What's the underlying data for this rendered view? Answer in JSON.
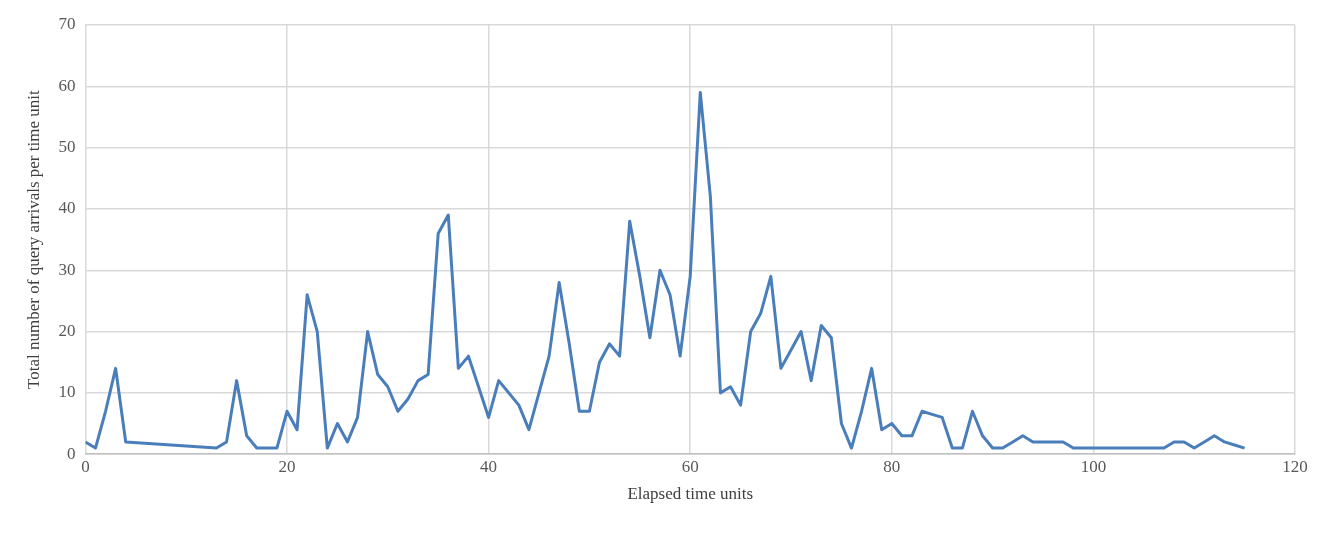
{
  "chart_data": {
    "type": "line",
    "xlabel": "Elapsed time units",
    "ylabel": "Total number of query arrivals per time unit",
    "xlim": [
      0,
      120
    ],
    "xticks": [
      0,
      20,
      40,
      60,
      80,
      100,
      120
    ],
    "ylim": [
      0,
      70
    ],
    "yticks": [
      0,
      10,
      20,
      30,
      40,
      50,
      60,
      70
    ],
    "grid": true,
    "legend": false,
    "marker": "none",
    "line_style": "solid",
    "x": [
      0,
      1,
      2,
      3,
      4,
      13,
      14,
      15,
      16,
      17,
      18,
      19,
      20,
      21,
      22,
      23,
      24,
      25,
      26,
      27,
      28,
      29,
      30,
      31,
      32,
      33,
      34,
      35,
      36,
      37,
      38,
      39,
      40,
      41,
      42,
      43,
      44,
      45,
      46,
      47,
      48,
      49,
      50,
      51,
      52,
      53,
      54,
      55,
      56,
      57,
      58,
      59,
      60,
      61,
      62,
      63,
      64,
      65,
      66,
      67,
      68,
      69,
      70,
      71,
      72,
      73,
      74,
      75,
      76,
      77,
      78,
      79,
      80,
      81,
      82,
      83,
      84,
      85,
      86,
      87,
      88,
      89,
      90,
      91,
      92,
      93,
      94,
      95,
      96,
      97,
      98,
      99,
      100,
      101,
      102,
      103,
      104,
      105,
      106,
      107,
      108,
      109,
      110,
      111,
      112,
      113,
      114,
      115
    ],
    "series": [
      {
        "color": "#4a7ebb",
        "values": [
          2,
          1,
          7,
          14,
          2,
          1,
          2,
          12,
          3,
          1,
          1,
          1,
          7,
          4,
          26,
          20,
          1,
          5,
          2,
          6,
          20,
          13,
          11,
          7,
          9,
          12,
          13,
          36,
          39,
          14,
          16,
          11,
          6,
          12,
          10,
          8,
          4,
          10,
          16,
          28,
          18,
          7,
          7,
          15,
          18,
          16,
          38,
          29,
          19,
          30,
          26,
          16,
          29,
          59,
          42,
          10,
          11,
          8,
          20,
          23,
          29,
          14,
          17,
          20,
          12,
          21,
          19,
          5,
          1,
          7,
          14,
          4,
          5,
          3,
          3,
          7,
          6.5,
          6,
          1,
          1,
          7,
          3,
          1,
          1,
          2,
          3,
          2,
          2,
          2,
          2,
          1,
          1,
          1,
          1,
          1,
          1,
          1,
          1,
          1,
          1,
          2,
          2,
          1,
          2,
          3,
          2,
          1.5,
          1
        ]
      }
    ]
  }
}
